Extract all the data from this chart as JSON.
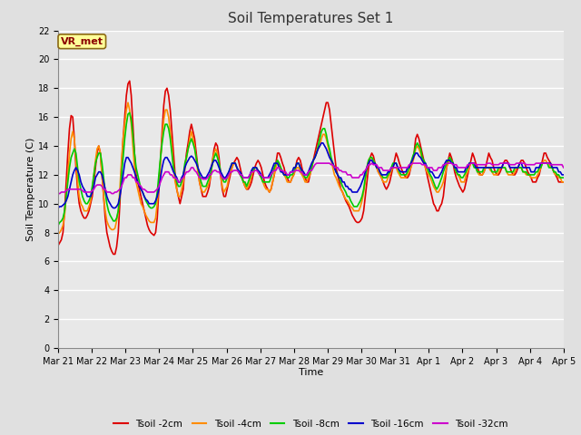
{
  "title": "Soil Temperatures Set 1",
  "xlabel": "Time",
  "ylabel": "Soil Temperature (C)",
  "ylim": [
    0,
    22
  ],
  "yticks": [
    0,
    2,
    4,
    6,
    8,
    10,
    12,
    14,
    16,
    18,
    20,
    22
  ],
  "annotation_text": "VR_met",
  "annotation_color": "#8B0000",
  "annotation_bg": "#FFFF99",
  "bg_color": "#E0E0E0",
  "plot_bg_color": "#E8E8E8",
  "grid_color": "white",
  "series": {
    "Tsoil -2cm": {
      "color": "#DD0000",
      "lw": 1.2
    },
    "Tsoil -4cm": {
      "color": "#FF8C00",
      "lw": 1.2
    },
    "Tsoil -8cm": {
      "color": "#00CC00",
      "lw": 1.2
    },
    "Tsoil -16cm": {
      "color": "#0000CC",
      "lw": 1.2
    },
    "Tsoil -32cm": {
      "color": "#CC00CC",
      "lw": 1.2
    }
  },
  "x_tick_labels": [
    "Mar 21",
    "Mar 22",
    "Mar 23",
    "Mar 24",
    "Mar 25",
    "Mar 26",
    "Mar 27",
    "Mar 28",
    "Mar 29",
    "Mar 30",
    "Mar 31",
    "Apr 1",
    "Apr 2",
    "Apr 3",
    "Apr 4",
    "Apr 5"
  ],
  "tsoil_2cm": [
    7.1,
    7.3,
    7.5,
    8.0,
    9.5,
    11.5,
    13.5,
    15.2,
    16.1,
    16.0,
    14.5,
    12.5,
    11.0,
    10.0,
    9.5,
    9.2,
    9.0,
    9.0,
    9.2,
    9.5,
    10.0,
    10.5,
    11.5,
    12.5,
    13.5,
    14.0,
    13.5,
    12.0,
    10.5,
    9.0,
    8.0,
    7.5,
    7.0,
    6.7,
    6.5,
    6.5,
    7.0,
    8.0,
    10.0,
    12.5,
    14.5,
    16.0,
    17.5,
    18.3,
    18.5,
    17.5,
    15.5,
    13.5,
    12.0,
    11.5,
    11.0,
    10.5,
    10.0,
    9.5,
    9.0,
    8.5,
    8.2,
    8.0,
    7.9,
    7.8,
    8.0,
    9.0,
    11.0,
    13.0,
    15.0,
    16.8,
    17.8,
    18.0,
    17.5,
    16.5,
    15.0,
    13.5,
    12.0,
    11.0,
    10.5,
    10.0,
    10.5,
    11.0,
    12.5,
    13.5,
    14.2,
    15.0,
    15.5,
    15.0,
    14.5,
    13.5,
    12.5,
    11.5,
    11.0,
    10.5,
    10.5,
    10.5,
    10.8,
    11.2,
    12.0,
    13.0,
    13.8,
    14.2,
    14.0,
    13.2,
    12.0,
    11.0,
    10.5,
    10.5,
    11.0,
    11.5,
    12.0,
    12.5,
    12.8,
    13.0,
    13.2,
    13.0,
    12.5,
    12.0,
    11.5,
    11.2,
    11.0,
    11.0,
    11.2,
    11.5,
    12.0,
    12.5,
    12.8,
    13.0,
    12.8,
    12.5,
    12.0,
    11.5,
    11.2,
    11.0,
    10.8,
    11.0,
    11.5,
    12.0,
    12.8,
    13.5,
    13.5,
    13.2,
    12.8,
    12.5,
    12.0,
    11.8,
    11.5,
    11.5,
    11.8,
    12.0,
    12.5,
    13.0,
    13.2,
    13.0,
    12.5,
    12.0,
    11.8,
    11.5,
    11.5,
    12.0,
    12.5,
    13.0,
    13.5,
    14.0,
    14.5,
    15.0,
    15.5,
    16.0,
    16.5,
    17.0,
    17.0,
    16.5,
    15.5,
    14.5,
    13.5,
    12.5,
    12.0,
    11.5,
    11.0,
    10.8,
    10.5,
    10.2,
    10.0,
    9.8,
    9.5,
    9.2,
    9.0,
    8.8,
    8.7,
    8.7,
    8.8,
    9.0,
    9.5,
    10.5,
    11.5,
    12.5,
    13.2,
    13.5,
    13.3,
    12.8,
    12.5,
    12.2,
    12.0,
    11.8,
    11.5,
    11.2,
    11.0,
    11.2,
    11.5,
    12.0,
    12.5,
    13.0,
    13.5,
    13.2,
    12.8,
    12.5,
    12.2,
    12.0,
    11.8,
    11.8,
    12.0,
    12.5,
    13.0,
    13.5,
    14.5,
    14.8,
    14.5,
    14.0,
    13.5,
    13.0,
    12.5,
    12.0,
    11.5,
    11.0,
    10.5,
    10.0,
    9.8,
    9.5,
    9.5,
    9.8,
    10.0,
    10.5,
    11.5,
    12.5,
    13.0,
    13.5,
    13.2,
    12.8,
    12.2,
    11.8,
    11.5,
    11.2,
    11.0,
    10.8,
    11.0,
    11.5,
    12.0,
    12.5,
    13.0,
    13.5,
    13.2,
    12.8,
    12.5,
    12.2,
    12.0,
    12.0,
    12.2,
    12.5,
    13.0,
    13.5,
    13.2,
    13.0,
    12.5,
    12.2,
    12.0,
    12.0,
    12.2,
    12.5,
    12.8,
    13.0,
    13.0,
    12.8,
    12.5,
    12.2,
    12.0,
    12.0,
    12.2,
    12.5,
    12.8,
    13.0,
    13.0,
    12.8,
    12.5,
    12.2,
    12.0,
    11.8,
    11.5,
    11.5,
    11.5,
    11.8,
    12.0,
    12.5,
    13.0,
    13.5,
    13.5,
    13.2,
    13.0,
    12.8,
    12.5,
    12.2,
    12.0,
    11.8,
    11.5,
    11.5,
    11.5,
    11.5
  ],
  "tsoil_4cm": [
    7.9,
    8.0,
    8.2,
    8.5,
    9.2,
    10.5,
    12.0,
    13.5,
    14.5,
    15.0,
    14.5,
    13.0,
    11.5,
    10.5,
    10.0,
    9.8,
    9.5,
    9.5,
    9.5,
    9.8,
    10.2,
    11.0,
    12.0,
    13.0,
    13.8,
    14.0,
    13.5,
    12.0,
    10.5,
    9.5,
    8.8,
    8.5,
    8.3,
    8.2,
    8.2,
    8.3,
    8.8,
    9.5,
    11.0,
    13.0,
    14.5,
    15.5,
    16.5,
    17.0,
    16.5,
    15.5,
    14.0,
    12.5,
    11.5,
    11.0,
    10.5,
    10.0,
    9.8,
    9.5,
    9.2,
    9.0,
    8.8,
    8.7,
    8.7,
    8.7,
    9.0,
    10.0,
    11.5,
    13.0,
    14.5,
    15.8,
    16.5,
    16.5,
    16.0,
    15.0,
    14.0,
    12.5,
    11.5,
    11.0,
    10.5,
    10.5,
    11.0,
    11.5,
    12.5,
    13.2,
    13.8,
    14.5,
    15.0,
    14.5,
    14.0,
    13.0,
    12.2,
    11.5,
    11.0,
    10.8,
    10.8,
    11.0,
    11.2,
    11.5,
    12.0,
    13.0,
    13.5,
    13.8,
    13.5,
    12.8,
    12.0,
    11.2,
    10.8,
    11.0,
    11.2,
    11.8,
    12.2,
    12.5,
    12.8,
    12.8,
    12.5,
    12.2,
    12.0,
    11.8,
    11.5,
    11.2,
    11.0,
    11.2,
    11.5,
    12.0,
    12.3,
    12.5,
    12.5,
    12.3,
    12.0,
    11.8,
    11.5,
    11.2,
    11.0,
    11.0,
    10.8,
    11.0,
    11.5,
    12.0,
    12.5,
    13.0,
    12.8,
    12.5,
    12.2,
    12.0,
    11.8,
    11.5,
    11.5,
    11.5,
    11.8,
    12.0,
    12.3,
    12.5,
    12.5,
    12.2,
    12.0,
    11.8,
    11.5,
    11.5,
    11.8,
    12.0,
    12.5,
    13.0,
    13.2,
    13.5,
    13.8,
    14.0,
    14.5,
    14.8,
    14.8,
    14.5,
    14.0,
    13.5,
    13.0,
    12.5,
    12.0,
    11.8,
    11.5,
    11.2,
    11.0,
    10.8,
    10.5,
    10.3,
    10.2,
    10.0,
    9.8,
    9.7,
    9.5,
    9.5,
    9.5,
    9.5,
    9.8,
    10.2,
    10.8,
    11.5,
    12.5,
    13.0,
    13.2,
    13.2,
    13.0,
    12.8,
    12.5,
    12.2,
    12.0,
    11.8,
    11.5,
    11.5,
    11.5,
    11.8,
    12.0,
    12.3,
    12.5,
    12.5,
    12.5,
    12.2,
    12.0,
    11.8,
    11.8,
    11.8,
    11.8,
    12.0,
    12.2,
    12.5,
    12.8,
    13.2,
    13.8,
    14.0,
    13.8,
    13.5,
    13.0,
    12.8,
    12.5,
    12.2,
    12.0,
    11.8,
    11.5,
    11.2,
    11.0,
    10.8,
    10.8,
    11.0,
    11.2,
    11.5,
    12.0,
    12.5,
    12.8,
    13.0,
    13.0,
    12.8,
    12.5,
    12.2,
    12.0,
    11.8,
    11.5,
    11.5,
    11.5,
    12.0,
    12.2,
    12.5,
    12.8,
    12.8,
    12.8,
    12.5,
    12.2,
    12.0,
    12.0,
    12.0,
    12.2,
    12.5,
    12.5,
    12.5,
    12.3,
    12.2,
    12.0,
    12.0,
    12.0,
    12.2,
    12.5,
    12.5,
    12.5,
    12.5,
    12.2,
    12.0,
    12.0,
    12.0,
    12.0,
    12.2,
    12.5,
    12.5,
    12.5,
    12.5,
    12.2,
    12.2,
    12.0,
    12.0,
    12.0,
    11.8,
    11.8,
    11.8,
    11.8,
    12.0,
    12.2,
    12.5,
    12.8,
    13.0,
    13.0,
    12.8,
    12.8,
    12.5,
    12.5,
    12.2,
    12.0,
    12.0,
    11.8,
    11.8,
    11.5,
    11.5
  ],
  "tsoil_8cm": [
    8.5,
    8.7,
    8.8,
    9.0,
    9.5,
    10.5,
    11.5,
    12.5,
    13.2,
    13.5,
    13.8,
    13.5,
    12.5,
    11.5,
    11.0,
    10.5,
    10.2,
    10.0,
    10.0,
    10.2,
    10.5,
    11.2,
    12.0,
    12.8,
    13.2,
    13.5,
    13.5,
    12.8,
    11.8,
    10.8,
    10.0,
    9.5,
    9.2,
    9.0,
    8.8,
    8.8,
    9.0,
    9.5,
    10.5,
    12.0,
    13.2,
    14.5,
    15.5,
    16.2,
    16.3,
    15.8,
    14.8,
    13.5,
    12.5,
    12.0,
    11.5,
    11.0,
    10.8,
    10.5,
    10.2,
    10.0,
    9.8,
    9.7,
    9.7,
    9.8,
    10.0,
    10.8,
    12.0,
    13.2,
    14.2,
    15.0,
    15.5,
    15.5,
    15.2,
    14.5,
    13.5,
    12.5,
    12.0,
    11.5,
    11.2,
    11.2,
    11.5,
    12.0,
    12.8,
    13.2,
    13.8,
    14.2,
    14.5,
    14.2,
    13.8,
    13.2,
    12.5,
    12.0,
    11.5,
    11.2,
    11.2,
    11.2,
    11.5,
    11.8,
    12.2,
    12.8,
    13.2,
    13.5,
    13.2,
    12.8,
    12.2,
    11.8,
    11.5,
    11.5,
    11.8,
    12.2,
    12.5,
    12.8,
    12.8,
    12.8,
    12.5,
    12.2,
    12.0,
    11.8,
    11.5,
    11.5,
    11.2,
    11.5,
    11.8,
    12.2,
    12.3,
    12.5,
    12.5,
    12.2,
    12.0,
    11.8,
    11.5,
    11.5,
    11.5,
    11.5,
    11.5,
    11.8,
    12.2,
    12.5,
    12.8,
    13.0,
    12.8,
    12.5,
    12.2,
    12.0,
    12.0,
    11.8,
    11.8,
    12.0,
    12.0,
    12.2,
    12.5,
    12.8,
    12.8,
    12.5,
    12.2,
    12.0,
    11.8,
    11.8,
    12.0,
    12.2,
    12.5,
    13.0,
    13.2,
    13.5,
    14.0,
    14.5,
    15.0,
    15.2,
    15.2,
    14.8,
    14.2,
    13.8,
    13.2,
    12.8,
    12.5,
    12.2,
    12.0,
    11.8,
    11.5,
    11.2,
    11.0,
    10.8,
    10.5,
    10.5,
    10.2,
    10.0,
    9.8,
    9.8,
    9.8,
    10.0,
    10.2,
    10.5,
    11.0,
    11.8,
    12.5,
    13.0,
    13.2,
    13.2,
    13.0,
    12.8,
    12.5,
    12.5,
    12.2,
    12.0,
    11.8,
    11.8,
    11.8,
    12.0,
    12.2,
    12.5,
    12.8,
    12.8,
    12.8,
    12.5,
    12.2,
    12.0,
    12.0,
    12.0,
    12.0,
    12.2,
    12.5,
    12.8,
    13.2,
    13.5,
    14.0,
    14.2,
    14.0,
    13.8,
    13.2,
    13.0,
    12.8,
    12.5,
    12.2,
    12.0,
    11.8,
    11.5,
    11.2,
    11.0,
    11.2,
    11.5,
    11.8,
    12.2,
    12.5,
    12.8,
    13.0,
    13.2,
    13.0,
    12.8,
    12.5,
    12.2,
    12.0,
    12.0,
    11.8,
    11.8,
    12.0,
    12.2,
    12.5,
    12.8,
    12.8,
    12.8,
    12.5,
    12.5,
    12.2,
    12.2,
    12.2,
    12.2,
    12.5,
    12.5,
    12.5,
    12.5,
    12.5,
    12.2,
    12.2,
    12.2,
    12.2,
    12.5,
    12.5,
    12.5,
    12.5,
    12.5,
    12.2,
    12.2,
    12.2,
    12.2,
    12.2,
    12.5,
    12.5,
    12.5,
    12.5,
    12.5,
    12.2,
    12.2,
    12.2,
    12.0,
    12.0,
    12.0,
    12.0,
    12.0,
    12.2,
    12.2,
    12.5,
    12.5,
    12.8,
    12.8,
    12.8,
    12.8,
    12.5,
    12.5,
    12.5,
    12.2,
    12.2,
    12.0,
    12.0,
    11.8,
    11.8,
    11.8
  ],
  "tsoil_16cm": [
    9.7,
    9.8,
    9.8,
    9.9,
    10.0,
    10.2,
    10.5,
    11.0,
    11.5,
    12.0,
    12.3,
    12.5,
    12.3,
    12.0,
    11.5,
    11.2,
    11.0,
    10.8,
    10.5,
    10.5,
    10.5,
    10.8,
    11.2,
    11.8,
    12.0,
    12.2,
    12.2,
    12.0,
    11.5,
    11.0,
    10.5,
    10.2,
    10.0,
    9.8,
    9.7,
    9.7,
    9.8,
    10.0,
    10.5,
    11.2,
    12.0,
    12.8,
    13.2,
    13.2,
    13.0,
    12.8,
    12.5,
    12.2,
    11.8,
    11.5,
    11.2,
    11.0,
    10.8,
    10.5,
    10.3,
    10.2,
    10.0,
    10.0,
    10.0,
    10.0,
    10.2,
    10.5,
    11.0,
    11.8,
    12.5,
    13.0,
    13.2,
    13.2,
    13.0,
    12.8,
    12.5,
    12.2,
    12.0,
    11.8,
    11.5,
    11.5,
    11.8,
    12.0,
    12.5,
    12.8,
    13.0,
    13.2,
    13.3,
    13.2,
    13.0,
    12.8,
    12.5,
    12.2,
    12.0,
    11.8,
    11.8,
    11.8,
    12.0,
    12.2,
    12.5,
    12.8,
    13.0,
    13.0,
    12.8,
    12.5,
    12.2,
    12.0,
    11.8,
    11.8,
    12.0,
    12.2,
    12.5,
    12.8,
    12.8,
    12.8,
    12.5,
    12.3,
    12.2,
    12.0,
    11.8,
    11.8,
    11.8,
    11.8,
    12.0,
    12.3,
    12.5,
    12.5,
    12.5,
    12.3,
    12.2,
    12.0,
    11.8,
    11.8,
    11.8,
    11.8,
    12.0,
    12.2,
    12.5,
    12.8,
    12.8,
    12.8,
    12.5,
    12.2,
    12.2,
    12.0,
    12.0,
    12.0,
    12.0,
    12.2,
    12.2,
    12.5,
    12.5,
    12.8,
    12.8,
    12.5,
    12.3,
    12.2,
    12.0,
    12.0,
    12.2,
    12.5,
    12.8,
    13.0,
    13.2,
    13.5,
    13.8,
    14.0,
    14.2,
    14.2,
    14.0,
    13.8,
    13.5,
    13.2,
    13.0,
    12.8,
    12.5,
    12.2,
    12.0,
    11.8,
    11.8,
    11.5,
    11.5,
    11.2,
    11.2,
    11.0,
    11.0,
    10.8,
    10.8,
    10.8,
    10.8,
    11.0,
    11.2,
    11.5,
    11.8,
    12.2,
    12.5,
    12.8,
    13.0,
    13.0,
    12.8,
    12.8,
    12.5,
    12.5,
    12.2,
    12.0,
    12.0,
    12.0,
    12.0,
    12.2,
    12.2,
    12.5,
    12.5,
    12.8,
    12.8,
    12.5,
    12.3,
    12.2,
    12.2,
    12.2,
    12.2,
    12.5,
    12.5,
    12.8,
    13.0,
    13.3,
    13.5,
    13.5,
    13.3,
    13.2,
    13.0,
    12.8,
    12.8,
    12.5,
    12.5,
    12.2,
    12.2,
    12.0,
    11.8,
    11.8,
    11.8,
    12.0,
    12.2,
    12.5,
    12.8,
    13.0,
    13.0,
    13.0,
    12.8,
    12.8,
    12.5,
    12.5,
    12.2,
    12.2,
    12.2,
    12.2,
    12.2,
    12.5,
    12.5,
    12.8,
    12.8,
    12.8,
    12.8,
    12.5,
    12.5,
    12.5,
    12.5,
    12.5,
    12.5,
    12.5,
    12.5,
    12.5,
    12.5,
    12.5,
    12.5,
    12.5,
    12.5,
    12.5,
    12.5,
    12.5,
    12.8,
    12.8,
    12.8,
    12.8,
    12.5,
    12.5,
    12.5,
    12.5,
    12.5,
    12.5,
    12.8,
    12.8,
    12.5,
    12.5,
    12.5,
    12.5,
    12.5,
    12.2,
    12.2,
    12.2,
    12.5,
    12.5,
    12.5,
    12.8,
    12.8,
    12.8,
    12.8,
    12.8,
    12.8,
    12.8,
    12.5,
    12.5,
    12.5,
    12.5,
    12.2,
    12.2,
    12.0,
    12.0
  ],
  "tsoil_32cm": [
    10.7,
    10.7,
    10.8,
    10.8,
    10.8,
    10.9,
    11.0,
    11.0,
    11.0,
    11.0,
    11.0,
    11.0,
    11.0,
    11.0,
    11.0,
    10.9,
    10.8,
    10.8,
    10.8,
    10.8,
    10.8,
    10.9,
    11.0,
    11.2,
    11.3,
    11.3,
    11.3,
    11.2,
    11.0,
    11.0,
    10.8,
    10.8,
    10.8,
    10.7,
    10.7,
    10.8,
    10.8,
    10.9,
    11.0,
    11.2,
    11.5,
    11.8,
    11.8,
    12.0,
    12.0,
    12.0,
    11.8,
    11.8,
    11.5,
    11.5,
    11.3,
    11.2,
    11.0,
    11.0,
    10.9,
    10.8,
    10.8,
    10.8,
    10.8,
    10.8,
    10.9,
    11.0,
    11.2,
    11.5,
    11.8,
    12.0,
    12.2,
    12.2,
    12.2,
    12.0,
    12.0,
    11.8,
    11.8,
    11.7,
    11.5,
    11.5,
    11.7,
    11.8,
    12.0,
    12.2,
    12.2,
    12.3,
    12.5,
    12.5,
    12.3,
    12.2,
    12.0,
    11.8,
    11.8,
    11.7,
    11.7,
    11.7,
    11.8,
    12.0,
    12.0,
    12.2,
    12.3,
    12.3,
    12.2,
    12.2,
    12.0,
    11.8,
    11.7,
    11.7,
    11.8,
    12.0,
    12.2,
    12.2,
    12.3,
    12.3,
    12.3,
    12.2,
    12.0,
    12.0,
    11.8,
    11.8,
    11.8,
    11.8,
    12.0,
    12.2,
    12.2,
    12.3,
    12.3,
    12.2,
    12.0,
    12.0,
    11.8,
    11.8,
    11.8,
    11.8,
    11.8,
    12.0,
    12.2,
    12.3,
    12.3,
    12.5,
    12.5,
    12.3,
    12.3,
    12.2,
    12.2,
    12.0,
    12.0,
    12.2,
    12.2,
    12.2,
    12.3,
    12.3,
    12.3,
    12.2,
    12.2,
    12.0,
    12.0,
    12.0,
    12.2,
    12.3,
    12.3,
    12.5,
    12.7,
    12.8,
    12.8,
    12.8,
    12.8,
    12.8,
    12.8,
    12.8,
    12.8,
    12.8,
    12.7,
    12.7,
    12.5,
    12.5,
    12.5,
    12.3,
    12.3,
    12.2,
    12.2,
    12.2,
    12.0,
    12.0,
    12.0,
    11.8,
    11.8,
    11.8,
    11.8,
    11.8,
    12.0,
    12.0,
    12.2,
    12.3,
    12.5,
    12.7,
    12.7,
    12.8,
    12.7,
    12.7,
    12.7,
    12.5,
    12.5,
    12.5,
    12.3,
    12.3,
    12.3,
    12.3,
    12.3,
    12.5,
    12.5,
    12.5,
    12.5,
    12.5,
    12.5,
    12.5,
    12.5,
    12.5,
    12.5,
    12.5,
    12.7,
    12.7,
    12.8,
    12.8,
    12.8,
    12.8,
    12.8,
    12.8,
    12.7,
    12.7,
    12.7,
    12.5,
    12.5,
    12.5,
    12.5,
    12.3,
    12.3,
    12.3,
    12.5,
    12.5,
    12.5,
    12.7,
    12.7,
    12.8,
    12.8,
    12.8,
    12.8,
    12.7,
    12.7,
    12.7,
    12.5,
    12.5,
    12.5,
    12.5,
    12.5,
    12.5,
    12.7,
    12.7,
    12.8,
    12.8,
    12.8,
    12.7,
    12.7,
    12.7,
    12.7,
    12.7,
    12.7,
    12.7,
    12.8,
    12.8,
    12.8,
    12.7,
    12.7,
    12.7,
    12.7,
    12.7,
    12.8,
    12.8,
    12.8,
    12.8,
    12.8,
    12.8,
    12.7,
    12.7,
    12.7,
    12.7,
    12.8,
    12.8,
    12.8,
    12.8,
    12.8,
    12.8,
    12.7,
    12.7,
    12.7,
    12.7,
    12.7,
    12.7,
    12.8,
    12.8,
    12.8,
    12.8,
    12.8,
    12.8,
    12.8,
    12.8,
    12.8,
    12.7,
    12.7,
    12.7,
    12.7,
    12.7,
    12.7,
    12.7,
    12.7,
    12.5
  ]
}
